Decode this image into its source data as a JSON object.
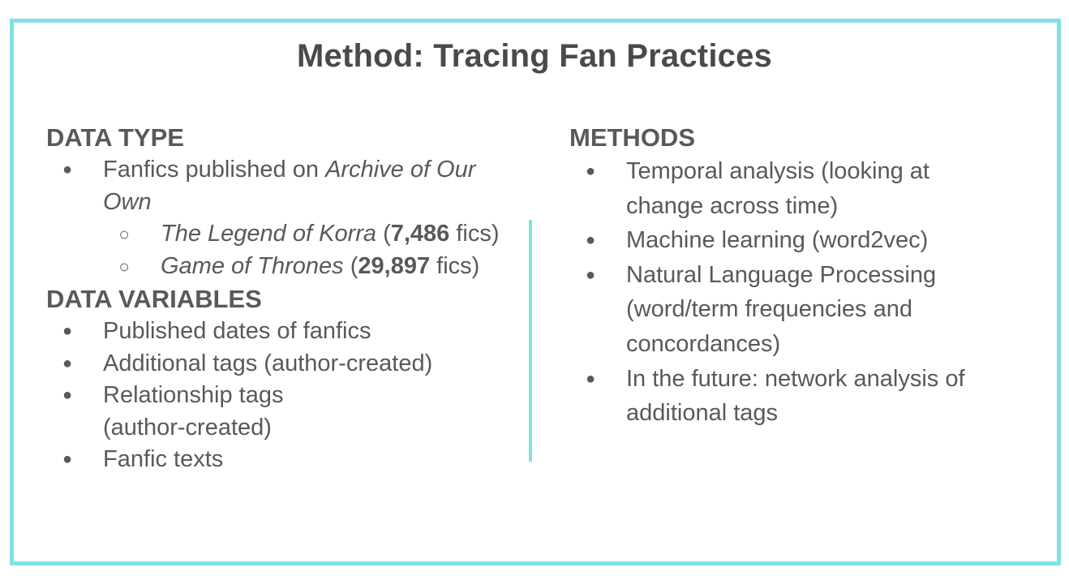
{
  "title": "Method: Tracing Fan Practices",
  "left": {
    "data_type": {
      "heading": "DATA TYPE",
      "item1": {
        "prefix": "Fanfics published on ",
        "italic": "Archive of Our Own"
      },
      "sub_items": [
        {
          "italic": "The Legend of Korra",
          "open": " (",
          "bold": "7,486",
          "suffix": " fics)"
        },
        {
          "italic": "Game of Thrones",
          "open": " (",
          "bold": "29,897",
          "suffix": " fics)"
        }
      ]
    },
    "data_variables": {
      "heading": "DATA VARIABLES",
      "items": [
        "Published dates of fanfics",
        "Additional tags (author-created)",
        "Relationship tags (author-created)",
        "Fanfic texts"
      ]
    }
  },
  "right": {
    "heading": "METHODS",
    "items": [
      "Temporal analysis (looking at change across time)",
      "Machine learning (word2vec)",
      "Natural Language Processing (word/term frequencies and concordances)",
      "In the future: network analysis of additional tags"
    ]
  },
  "glyphs": {
    "bullet": "●",
    "sub_bullet": "○"
  },
  "colors": {
    "frame": "#7fe3e2",
    "text": "#595959",
    "title": "#4a4a4a"
  }
}
